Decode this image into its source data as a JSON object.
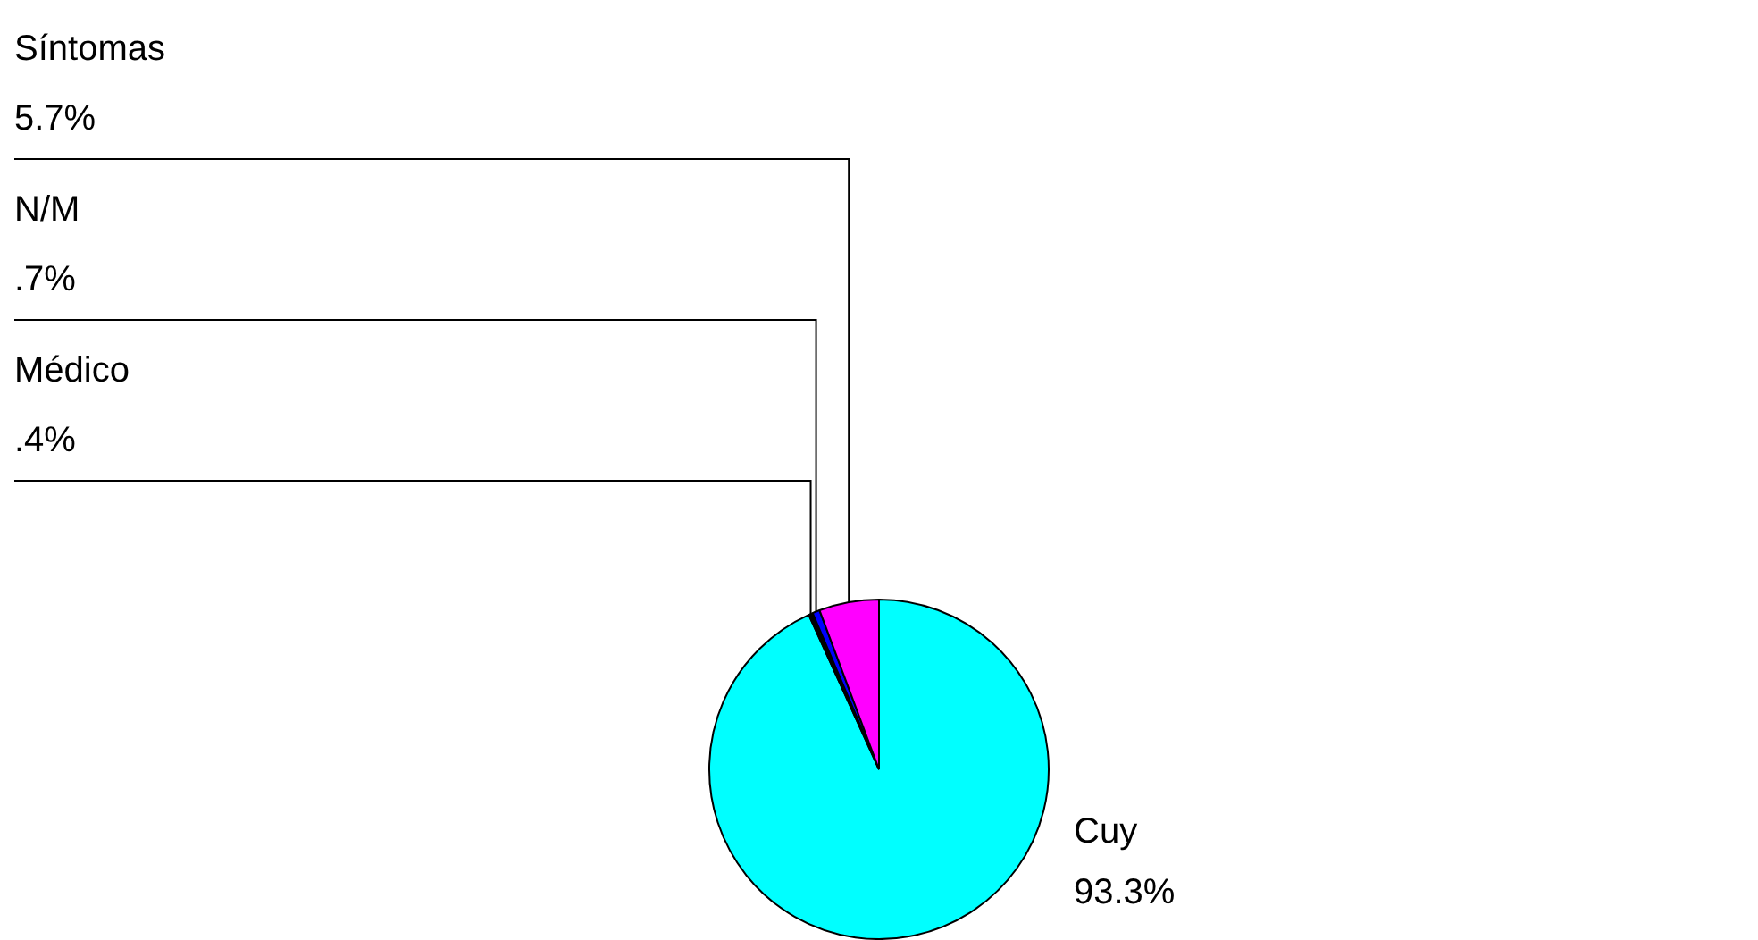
{
  "chart_data": {
    "type": "pie",
    "categories": [
      "Cuy",
      "Médico",
      "N/M",
      "Síntomas"
    ],
    "values": [
      93.3,
      0.4,
      0.7,
      5.7
    ],
    "value_labels": [
      "93.3%",
      ".4%",
      ".7%",
      "5.7%"
    ],
    "colors": [
      "#00ffff",
      "#000000",
      "#0000ff",
      "#ff00ff"
    ],
    "legend": false
  }
}
